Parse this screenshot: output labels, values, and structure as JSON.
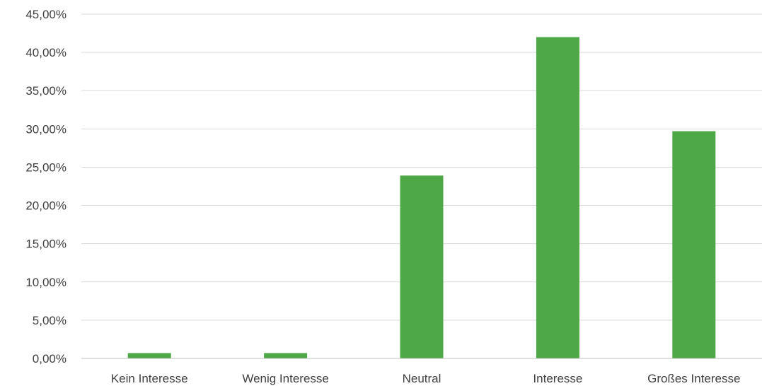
{
  "chart_data": {
    "type": "bar",
    "categories": [
      "Kein Interesse",
      "Wenig Interesse",
      "Neutral",
      "Interesse",
      "Großes  Interesse"
    ],
    "values": [
      0.7,
      0.7,
      23.9,
      42.0,
      29.7
    ],
    "yticks": [
      "0,00%",
      "5,00%",
      "10,00%",
      "15,00%",
      "20,00%",
      "25,00%",
      "30,00%",
      "35,00%",
      "40,00%",
      "45,00%"
    ],
    "ylim": [
      0,
      45
    ],
    "ystep": 5,
    "grid": true,
    "bar_color": "#4ea847",
    "grid_color": "#d9d9d9",
    "axis_color": "#bfbfbf",
    "title": "",
    "xlabel": "",
    "ylabel": ""
  }
}
